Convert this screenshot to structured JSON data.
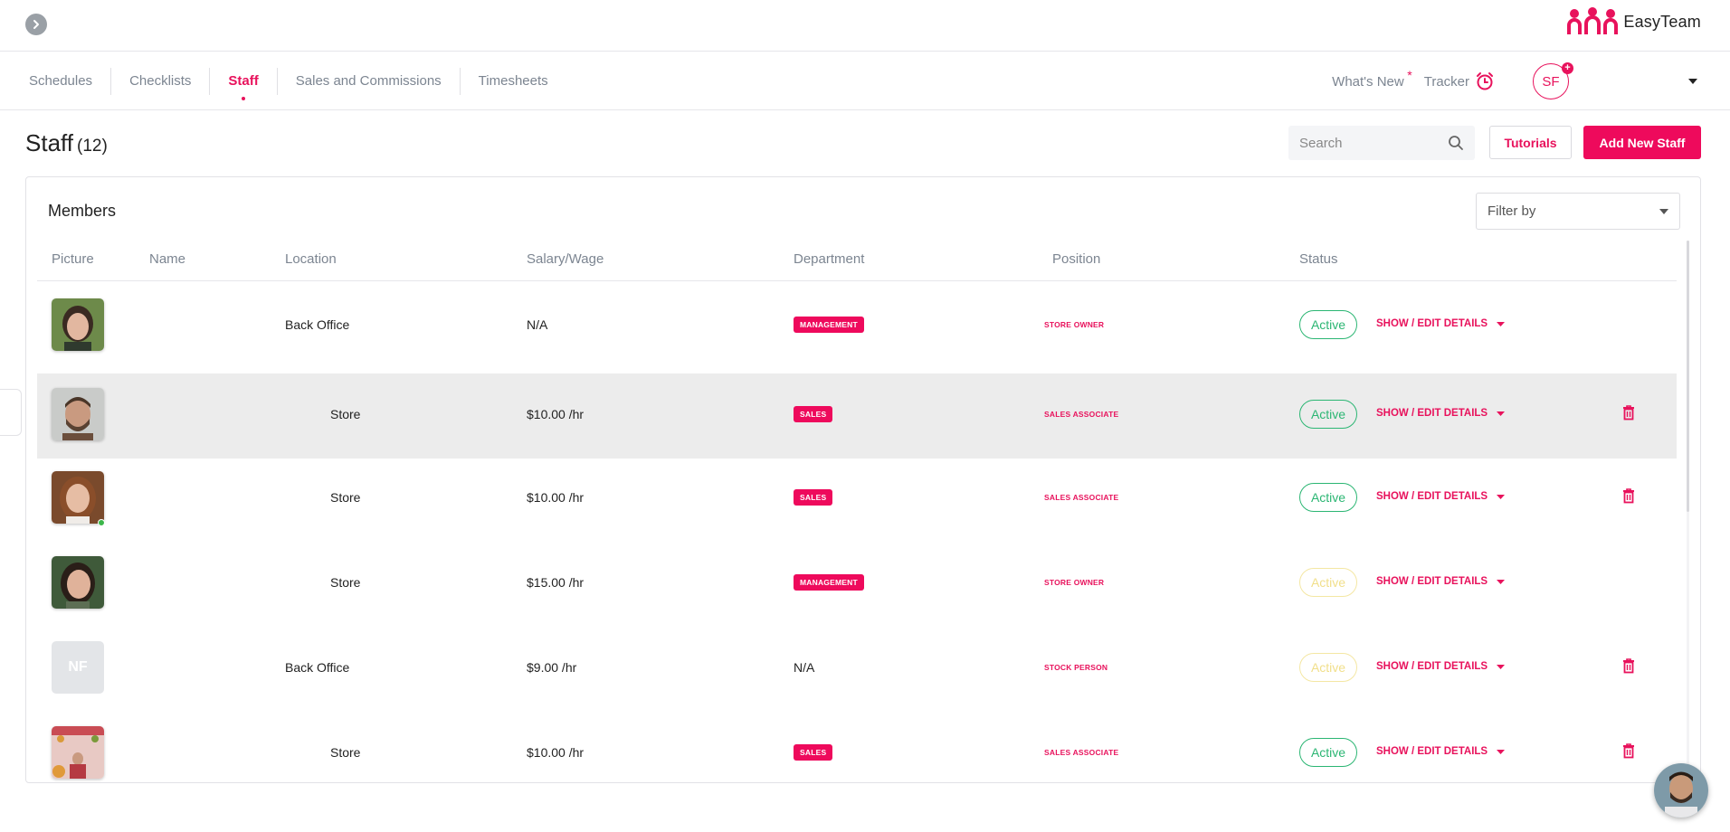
{
  "brand": {
    "name": "EasyTeam",
    "accent": "#e8125c"
  },
  "nav": {
    "tabs": [
      {
        "label": "Schedules"
      },
      {
        "label": "Checklists"
      },
      {
        "label": "Staff"
      },
      {
        "label": "Sales and Commissions"
      },
      {
        "label": "Timesheets"
      }
    ],
    "active_tab": "Staff",
    "whats_new": "What's New",
    "whats_new_marker": "*",
    "tracker": "Tracker",
    "user_initials": "SF",
    "user_badge": "+"
  },
  "page": {
    "title": "Staff",
    "count": "(12)",
    "search_placeholder": "Search",
    "tutorials_label": "Tutorials",
    "add_label": "Add New Staff"
  },
  "members": {
    "title": "Members",
    "filter_placeholder": "Filter by",
    "columns": [
      "Picture",
      "Name",
      "Location",
      "Salary/Wage",
      "Department",
      "Position",
      "Status"
    ],
    "rows": [
      {
        "photo": "portrait",
        "initials": "",
        "location": "Back Office",
        "wage": "N/A",
        "department": "MANAGEMENT",
        "position": "STORE OWNER",
        "status": "Active",
        "status_style": "active",
        "details": "SHOW / EDIT DETAILS",
        "deletable": false,
        "online": false
      },
      {
        "photo": "portrait",
        "initials": "",
        "location": "Store",
        "wage": "$10.00 /hr",
        "department": "SALES",
        "position": "SALES ASSOCIATE",
        "status": "Active",
        "status_style": "active",
        "details": "SHOW / EDIT DETAILS",
        "deletable": true,
        "online": false
      },
      {
        "photo": "portrait",
        "initials": "",
        "location": "Store",
        "wage": "$10.00 /hr",
        "department": "SALES",
        "position": "SALES ASSOCIATE",
        "status": "Active",
        "status_style": "active",
        "details": "SHOW / EDIT DETAILS",
        "deletable": true,
        "online": true
      },
      {
        "photo": "portrait",
        "initials": "",
        "location": "Store",
        "wage": "$15.00 /hr",
        "department": "MANAGEMENT",
        "position": "STORE OWNER",
        "status": "Active",
        "status_style": "pending",
        "details": "SHOW / EDIT DETAILS",
        "deletable": false,
        "online": false
      },
      {
        "photo": "initials",
        "initials": "NF",
        "location": "Back Office",
        "wage": "$9.00 /hr",
        "department": "N/A",
        "position": "STOCK PERSON",
        "status": "Active",
        "status_style": "pending",
        "details": "SHOW / EDIT DETAILS",
        "deletable": true,
        "online": false
      },
      {
        "photo": "portrait",
        "initials": "",
        "location": "Store",
        "wage": "$10.00 /hr",
        "department": "SALES",
        "position": "SALES ASSOCIATE",
        "status": "Active",
        "status_style": "active",
        "details": "SHOW / EDIT DETAILS",
        "deletable": true,
        "online": false
      }
    ]
  },
  "colors": {
    "accent": "#e8125c",
    "button_primary": "#ee0a5c",
    "status_active": "#2bb673",
    "status_pending": "#f1df8a",
    "muted_text": "#7c8591"
  }
}
